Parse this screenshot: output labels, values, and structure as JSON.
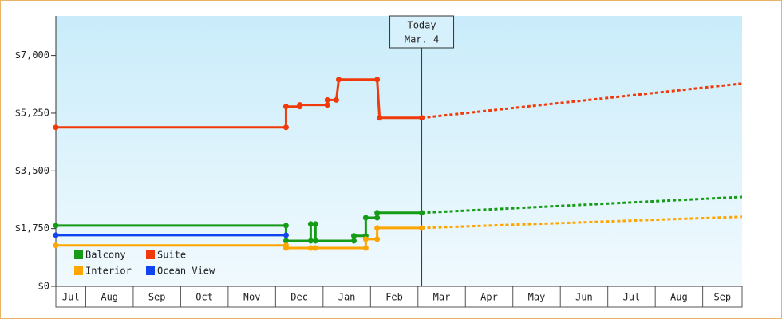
{
  "chart_data": {
    "type": "line",
    "xlim": [
      0.37,
      14.83
    ],
    "xticks": [
      {
        "value": 0,
        "label": "Jul"
      },
      {
        "value": 1,
        "label": "Aug"
      },
      {
        "value": 2,
        "label": "Sep"
      },
      {
        "value": 3,
        "label": "Oct"
      },
      {
        "value": 4,
        "label": "Nov"
      },
      {
        "value": 5,
        "label": "Dec"
      },
      {
        "value": 6,
        "label": "Jan"
      },
      {
        "value": 7,
        "label": "Feb"
      },
      {
        "value": 8,
        "label": "Mar"
      },
      {
        "value": 9,
        "label": "Apr"
      },
      {
        "value": 10,
        "label": "May"
      },
      {
        "value": 11,
        "label": "Jun"
      },
      {
        "value": 12,
        "label": "Jul"
      },
      {
        "value": 13,
        "label": "Aug"
      },
      {
        "value": 14,
        "label": "Sep"
      }
    ],
    "ylim": [
      0,
      8200
    ],
    "yticks": [
      {
        "value": 0,
        "label": "$0"
      },
      {
        "value": 1750,
        "label": "$1,750"
      },
      {
        "value": 3500,
        "label": "$3,500"
      },
      {
        "value": 5250,
        "label": "$5,250"
      },
      {
        "value": 7000,
        "label": "$7,000"
      }
    ],
    "annotation": {
      "x": 8.08,
      "lines": [
        "Today",
        "Mar. 4"
      ]
    },
    "series": [
      {
        "name": "Balcony",
        "color": "#169b16",
        "x": [
          0.37,
          5.22,
          5.22,
          5.74,
          5.74,
          5.84,
          5.84,
          6.65,
          6.65,
          6.9,
          6.9,
          7.14,
          7.14,
          8.08
        ],
        "values": [
          1840,
          1840,
          1380,
          1380,
          1890,
          1890,
          1380,
          1380,
          1530,
          1530,
          2080,
          2080,
          2230,
          2230
        ],
        "forecast_x": [
          8.08,
          14.83
        ],
        "forecast_values": [
          2230,
          2710
        ]
      },
      {
        "name": "Suite",
        "color": "#f03a0a",
        "x": [
          0.37,
          5.22,
          5.22,
          5.51,
          5.51,
          6.09,
          6.09,
          6.28,
          6.33,
          7.14,
          7.19,
          8.08
        ],
        "values": [
          4820,
          4820,
          5450,
          5450,
          5500,
          5500,
          5650,
          5650,
          6270,
          6270,
          5110,
          5110
        ],
        "forecast_x": [
          8.08,
          14.83
        ],
        "forecast_values": [
          5110,
          6150
        ]
      },
      {
        "name": "Interior",
        "color": "#ffa500",
        "x": [
          0.37,
          5.22,
          5.22,
          5.74,
          5.84,
          6.9,
          6.9,
          7.14,
          7.14,
          8.08
        ],
        "values": [
          1240,
          1240,
          1160,
          1160,
          1160,
          1160,
          1430,
          1430,
          1770,
          1770
        ],
        "forecast_x": [
          8.08,
          14.83
        ],
        "forecast_values": [
          1770,
          2110
        ]
      },
      {
        "name": "Ocean View",
        "color": "#1044ee",
        "x": [
          0.37,
          5.22
        ],
        "values": [
          1550,
          1550
        ],
        "forecast_x": [],
        "forecast_values": []
      }
    ]
  }
}
